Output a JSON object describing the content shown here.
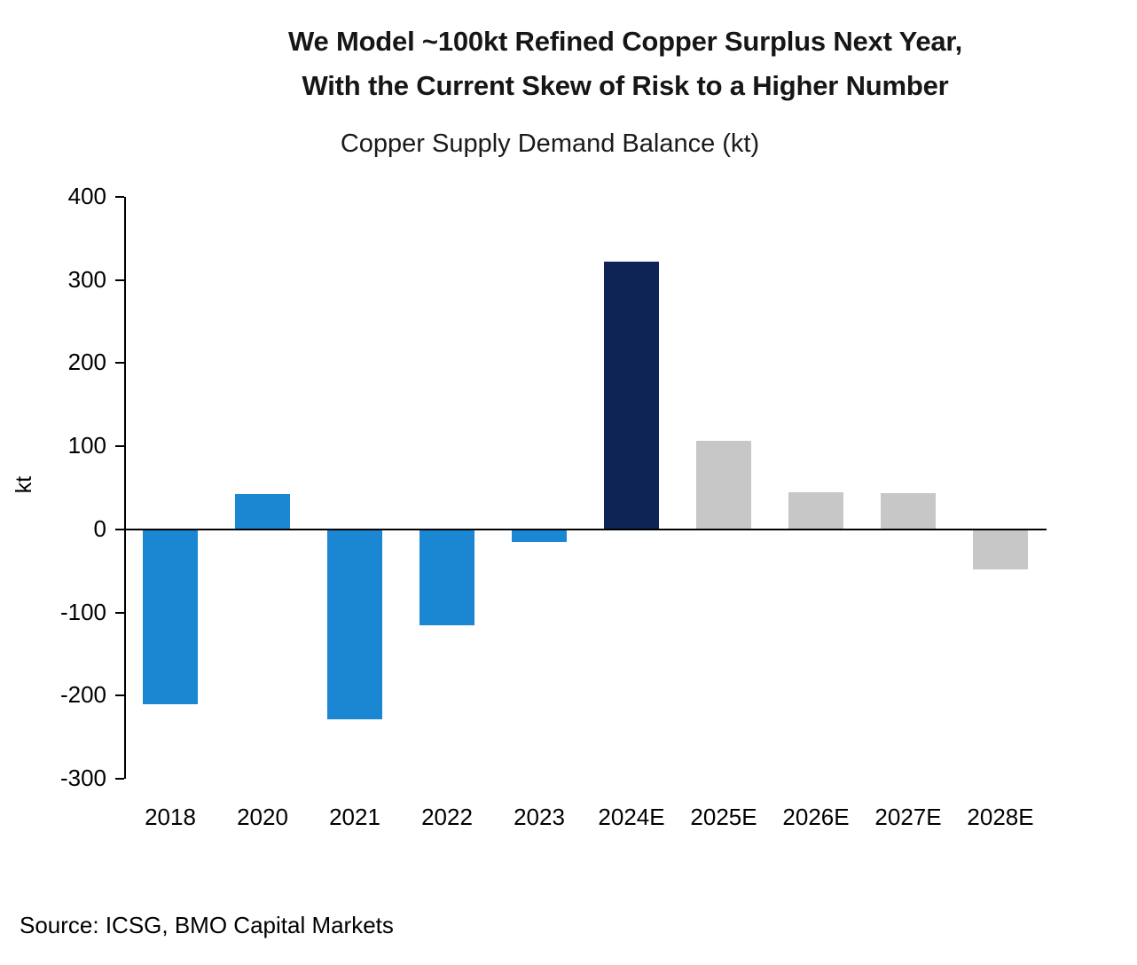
{
  "header": {
    "title_line1": "We Model ~100kt Refined Copper Surplus Next Year,",
    "title_line2": "With the Current Skew of Risk to a Higher Number",
    "subtitle": "Copper Supply Demand Balance (kt)"
  },
  "footer": {
    "source": "Source: ICSG, BMO Capital Markets"
  },
  "chart_data": {
    "type": "bar",
    "title": "Copper Supply Demand Balance (kt)",
    "categories": [
      "2018",
      "2020",
      "2021",
      "2022",
      "2023",
      "2024E",
      "2025E",
      "2026E",
      "2027E",
      "2028E"
    ],
    "values": [
      -210,
      42,
      -228,
      -115,
      -15,
      322,
      107,
      45,
      44,
      -48
    ],
    "colors": [
      "#1b87d3",
      "#1b87d3",
      "#1b87d3",
      "#1b87d3",
      "#1b87d3",
      "#0e2455",
      "#c7c7c7",
      "#c7c7c7",
      "#c7c7c7",
      "#c7c7c7"
    ],
    "color_meaning": {
      "historical_actual": "#1b87d3",
      "next_year_highlight": "#0e2455",
      "forecast_estimate": "#c7c7c7"
    },
    "xlabel": "",
    "ylabel": "kt",
    "ylim": [
      -300,
      400
    ],
    "ytick_step": 100,
    "grid": false,
    "legend": false,
    "axis_color": "#000000"
  }
}
